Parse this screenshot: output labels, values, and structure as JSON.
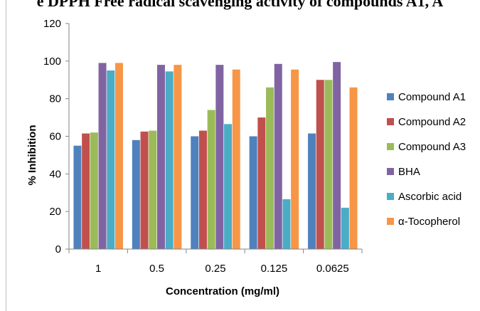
{
  "header": {
    "title": "e DPPH Free radical scavenging activity of compounds A1, A"
  },
  "chart_data": {
    "type": "bar",
    "title": "",
    "xlabel": "Concentration (mg/ml)",
    "ylabel": "% Inhibition",
    "ylim": [
      0,
      120
    ],
    "yticks": [
      "0",
      "20",
      "40",
      "60",
      "80",
      "100",
      "120"
    ],
    "categories": [
      "1",
      "0.5",
      "0.25",
      "0.125",
      "0.0625"
    ],
    "grid": false,
    "legend_position": "right",
    "series": [
      {
        "name": "Compound A1",
        "color": "#4f81bd",
        "values": [
          55,
          58,
          60,
          60,
          61.5
        ]
      },
      {
        "name": "Compound A2",
        "color": "#c0504d",
        "values": [
          61.5,
          62.5,
          63,
          70,
          90
        ]
      },
      {
        "name": "Compound A3",
        "color": "#9bbb59",
        "values": [
          62,
          63,
          74,
          86,
          90
        ]
      },
      {
        "name": "BHA",
        "color": "#8064a2",
        "values": [
          99,
          98,
          98,
          98.5,
          99.5
        ]
      },
      {
        "name": "Ascorbic acid",
        "color": "#4bacc6",
        "values": [
          95,
          94.5,
          66.5,
          26.5,
          22
        ]
      },
      {
        "name": "α-Tocopherol",
        "color": "#f79646",
        "values": [
          99,
          98,
          95.5,
          95.5,
          86
        ]
      }
    ]
  }
}
